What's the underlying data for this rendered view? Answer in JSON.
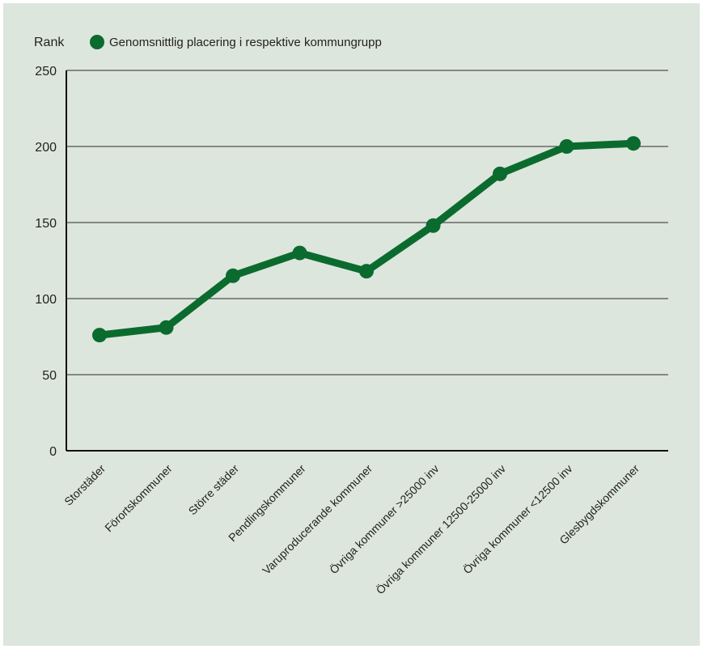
{
  "chart_data": {
    "type": "line",
    "title": "",
    "ylabel": "Rank",
    "xlabel": "",
    "ylim": [
      0,
      250
    ],
    "yticks": [
      0,
      50,
      100,
      150,
      200,
      250
    ],
    "grid": true,
    "legend_position": "top",
    "categories": [
      "Storstäder",
      "Förortskommuner",
      "Större städer",
      "Pendlingskommuner",
      "Varuproducerande kommuner",
      "Övriga kommuner >25000 inv",
      "Övriga kommuner 12500-25000 inv",
      "Övriga kommuner <12500 inv",
      "Glesbygdskommuner"
    ],
    "series": [
      {
        "name": "Genomsnittlig placering i respektive kommungrupp",
        "color": "#0b6b2e",
        "values": [
          76,
          81,
          115,
          130,
          118,
          148,
          182,
          200,
          202
        ]
      }
    ]
  }
}
